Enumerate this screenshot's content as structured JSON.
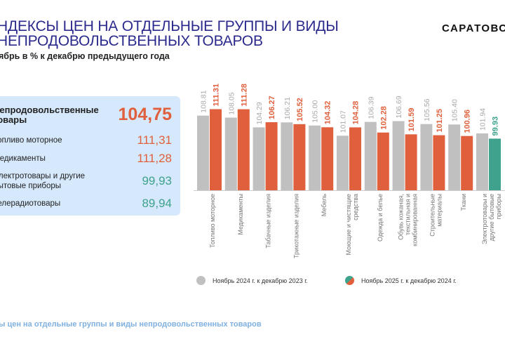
{
  "header": {
    "title_line1": "НДЕКСЫ ЦЕН НА ОТДЕЛЬНЫЕ ГРУППЫ И ВИДЫ",
    "title_line2": "НЕПРОДОВОЛЬСТВЕННЫХ ТОВАРОВ",
    "subtitle": "ябрь в % к декабрю предыдущего года",
    "brand": "САРАТОВС"
  },
  "panel": {
    "main": {
      "label": "Непродовольственные товары",
      "value": "104,75"
    },
    "items": [
      {
        "label": "Топливо моторное",
        "value": "111,31",
        "tone": "red"
      },
      {
        "label": "Медикаменты",
        "value": "111,28",
        "tone": "red"
      },
      {
        "label": "Электротовары и другие бытовые приборы",
        "value": "99,93",
        "tone": "green"
      },
      {
        "label": "Телерадиотовары",
        "value": "89,94",
        "tone": "green"
      }
    ]
  },
  "chart_data": {
    "type": "bar",
    "categories": [
      "Топливо моторное",
      "Медикаменты",
      "Табачные изделия",
      "Трикотажные изделия",
      "Мебель",
      "Моющие и чистящие средства",
      "Одежда и белье",
      "Обувь кожаная, текстильная и комбинированная",
      "Строительные материалы",
      "Ткани",
      "Электротовары и другие бытовые приборы"
    ],
    "series": [
      {
        "name": "Ноябрь 2024 г. к декабрю 2023 г.",
        "values": [
          108.81,
          108.05,
          104.29,
          106.21,
          105.0,
          101.07,
          106.39,
          106.69,
          105.56,
          105.4,
          101.94
        ],
        "labels": [
          "108.81",
          "108.05",
          "104.29",
          "106.21",
          "105.00",
          "101.07",
          "106.39",
          "106.69",
          "105.56",
          "105.40",
          "101.94"
        ]
      },
      {
        "name": "Ноябрь 2025 г. к декабрю 2024 г.",
        "values": [
          111.31,
          111.28,
          106.27,
          105.52,
          104.32,
          104.28,
          102.28,
          101.59,
          101.25,
          100.96,
          99.93
        ],
        "labels": [
          "111.31",
          "111.28",
          "106.27",
          "105.52",
          "104.32",
          "104.28",
          "102.28",
          "101.59",
          "101.25",
          "100.96",
          "99.93"
        ]
      }
    ],
    "ylim": [
      80,
      113
    ],
    "grid": false,
    "legend": "bottom",
    "colors": {
      "prev": "#c0c0c0",
      "up": "#e0603d",
      "down": "#3ea28c"
    }
  },
  "footer": "ы цен на отдельные группы и виды непродовольственных товаров"
}
